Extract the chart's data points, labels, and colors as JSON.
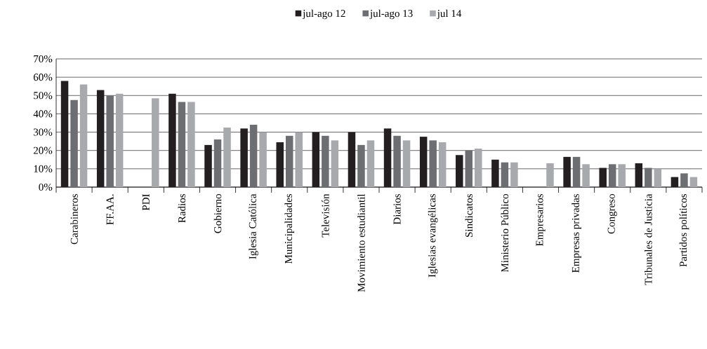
{
  "chart_data": {
    "type": "bar",
    "categories": [
      "Carabineros",
      "FF.AA.",
      "PDI",
      "Radios",
      "Gobierno",
      "Iglesia Católica",
      "Municipalidades",
      "Televisión",
      "Movimiento estudiantil",
      "Diarios",
      "Iglesias evangélicas",
      "Sindicatos",
      "Ministerio Público",
      "Empresarios",
      "Empresas privadas",
      "Congreso",
      "Tribunales de Justicia",
      "Partidos políticos"
    ],
    "series": [
      {
        "name": "jul-ago 12",
        "color": "#231f20",
        "values": [
          58,
          53,
          null,
          51,
          23,
          32,
          24.5,
          30,
          30,
          32,
          27.5,
          17.5,
          15,
          null,
          16.5,
          10.5,
          13,
          5.5
        ]
      },
      {
        "name": "jul-ago 13",
        "color": "#6d6e71",
        "values": [
          47.5,
          50,
          null,
          46.5,
          26,
          34,
          28,
          28,
          23,
          28,
          25.5,
          20,
          13.5,
          null,
          16.5,
          12.5,
          10.5,
          7.5
        ]
      },
      {
        "name": "jul 14",
        "color": "#a7a9ac",
        "values": [
          56,
          51,
          48.5,
          46.5,
          32.5,
          30,
          30,
          25.5,
          25.5,
          25.5,
          24.5,
          21,
          13.5,
          13,
          12.5,
          12.5,
          10,
          5.5
        ]
      }
    ],
    "ylim": [
      0,
      70
    ],
    "yticks": [
      {
        "value": 0,
        "label": "0%"
      },
      {
        "value": 10,
        "label": "10%"
      },
      {
        "value": 20,
        "label": "20%"
      },
      {
        "value": 30,
        "label": "30%"
      },
      {
        "value": 40,
        "label": "40%"
      },
      {
        "value": 50,
        "label": "50%"
      },
      {
        "value": 60,
        "label": "60%"
      },
      {
        "value": 70,
        "label": "70%"
      }
    ],
    "grid": "y",
    "legend": "top"
  }
}
